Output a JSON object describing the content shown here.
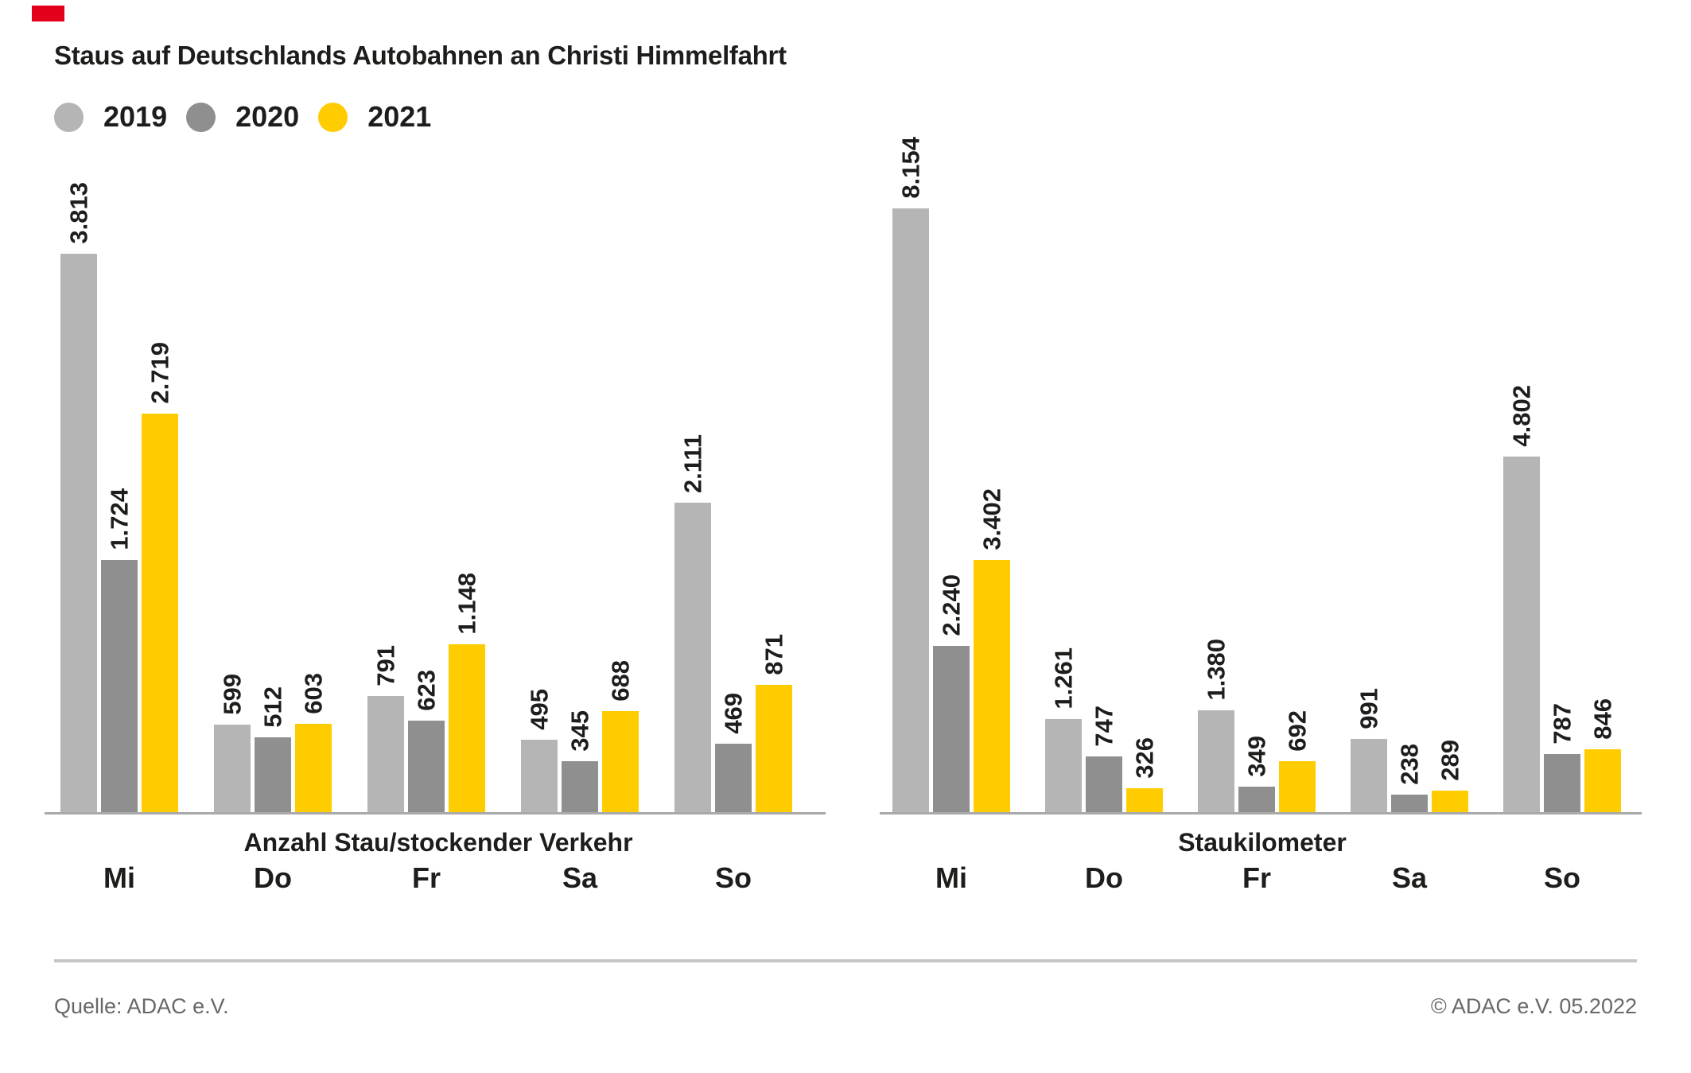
{
  "brand": {
    "mark_color": "#e2001a"
  },
  "title": "Staus auf Deutschlands Autobahnen an Christi Himmelfahrt",
  "legend": [
    {
      "label": "2019",
      "color": "#b5b5b5"
    },
    {
      "label": "2020",
      "color": "#8f8f8f"
    },
    {
      "label": "2021",
      "color": "#ffcc00"
    }
  ],
  "chart_data": [
    {
      "type": "bar",
      "caption": "Anzahl Stau/stockender Verkehr",
      "categories": [
        "Mi",
        "Do",
        "Fr",
        "Sa",
        "So"
      ],
      "series": [
        {
          "name": "2019",
          "color": "#b5b5b5",
          "values": [
            3813,
            599,
            791,
            495,
            2111
          ],
          "labels": [
            "3.813",
            "599",
            "791",
            "495",
            "2.111"
          ]
        },
        {
          "name": "2020",
          "color": "#8f8f8f",
          "values": [
            1724,
            512,
            623,
            345,
            469
          ],
          "labels": [
            "1.724",
            "512",
            "623",
            "345",
            "469"
          ]
        },
        {
          "name": "2021",
          "color": "#ffcc00",
          "values": [
            2719,
            603,
            1148,
            688,
            871
          ],
          "labels": [
            "2.719",
            "603",
            "1.148",
            "688",
            "871"
          ]
        }
      ],
      "ylim": [
        0,
        3813
      ],
      "value_label_rotation": -90,
      "grid": false,
      "legend_position": "top-left"
    },
    {
      "type": "bar",
      "caption": "Staukilometer",
      "categories": [
        "Mi",
        "Do",
        "Fr",
        "Sa",
        "So"
      ],
      "series": [
        {
          "name": "2019",
          "color": "#b5b5b5",
          "values": [
            8154,
            1261,
            1380,
            991,
            4802
          ],
          "labels": [
            "8.154",
            "1.261",
            "1.380",
            "991",
            "4.802"
          ]
        },
        {
          "name": "2020",
          "color": "#8f8f8f",
          "values": [
            2240,
            747,
            349,
            238,
            787
          ],
          "labels": [
            "2.240",
            "747",
            "349",
            "238",
            "787"
          ]
        },
        {
          "name": "2021",
          "color": "#ffcc00",
          "values": [
            3402,
            326,
            692,
            289,
            846
          ],
          "labels": [
            "3.402",
            "326",
            "692",
            "289",
            "846"
          ]
        }
      ],
      "ylim": [
        0,
        8154
      ],
      "value_label_rotation": -90,
      "grid": false,
      "legend_position": "top-left"
    }
  ],
  "footer": {
    "source": "Quelle: ADAC e.V.",
    "copyright": "© ADAC e.V. 05.2022"
  }
}
